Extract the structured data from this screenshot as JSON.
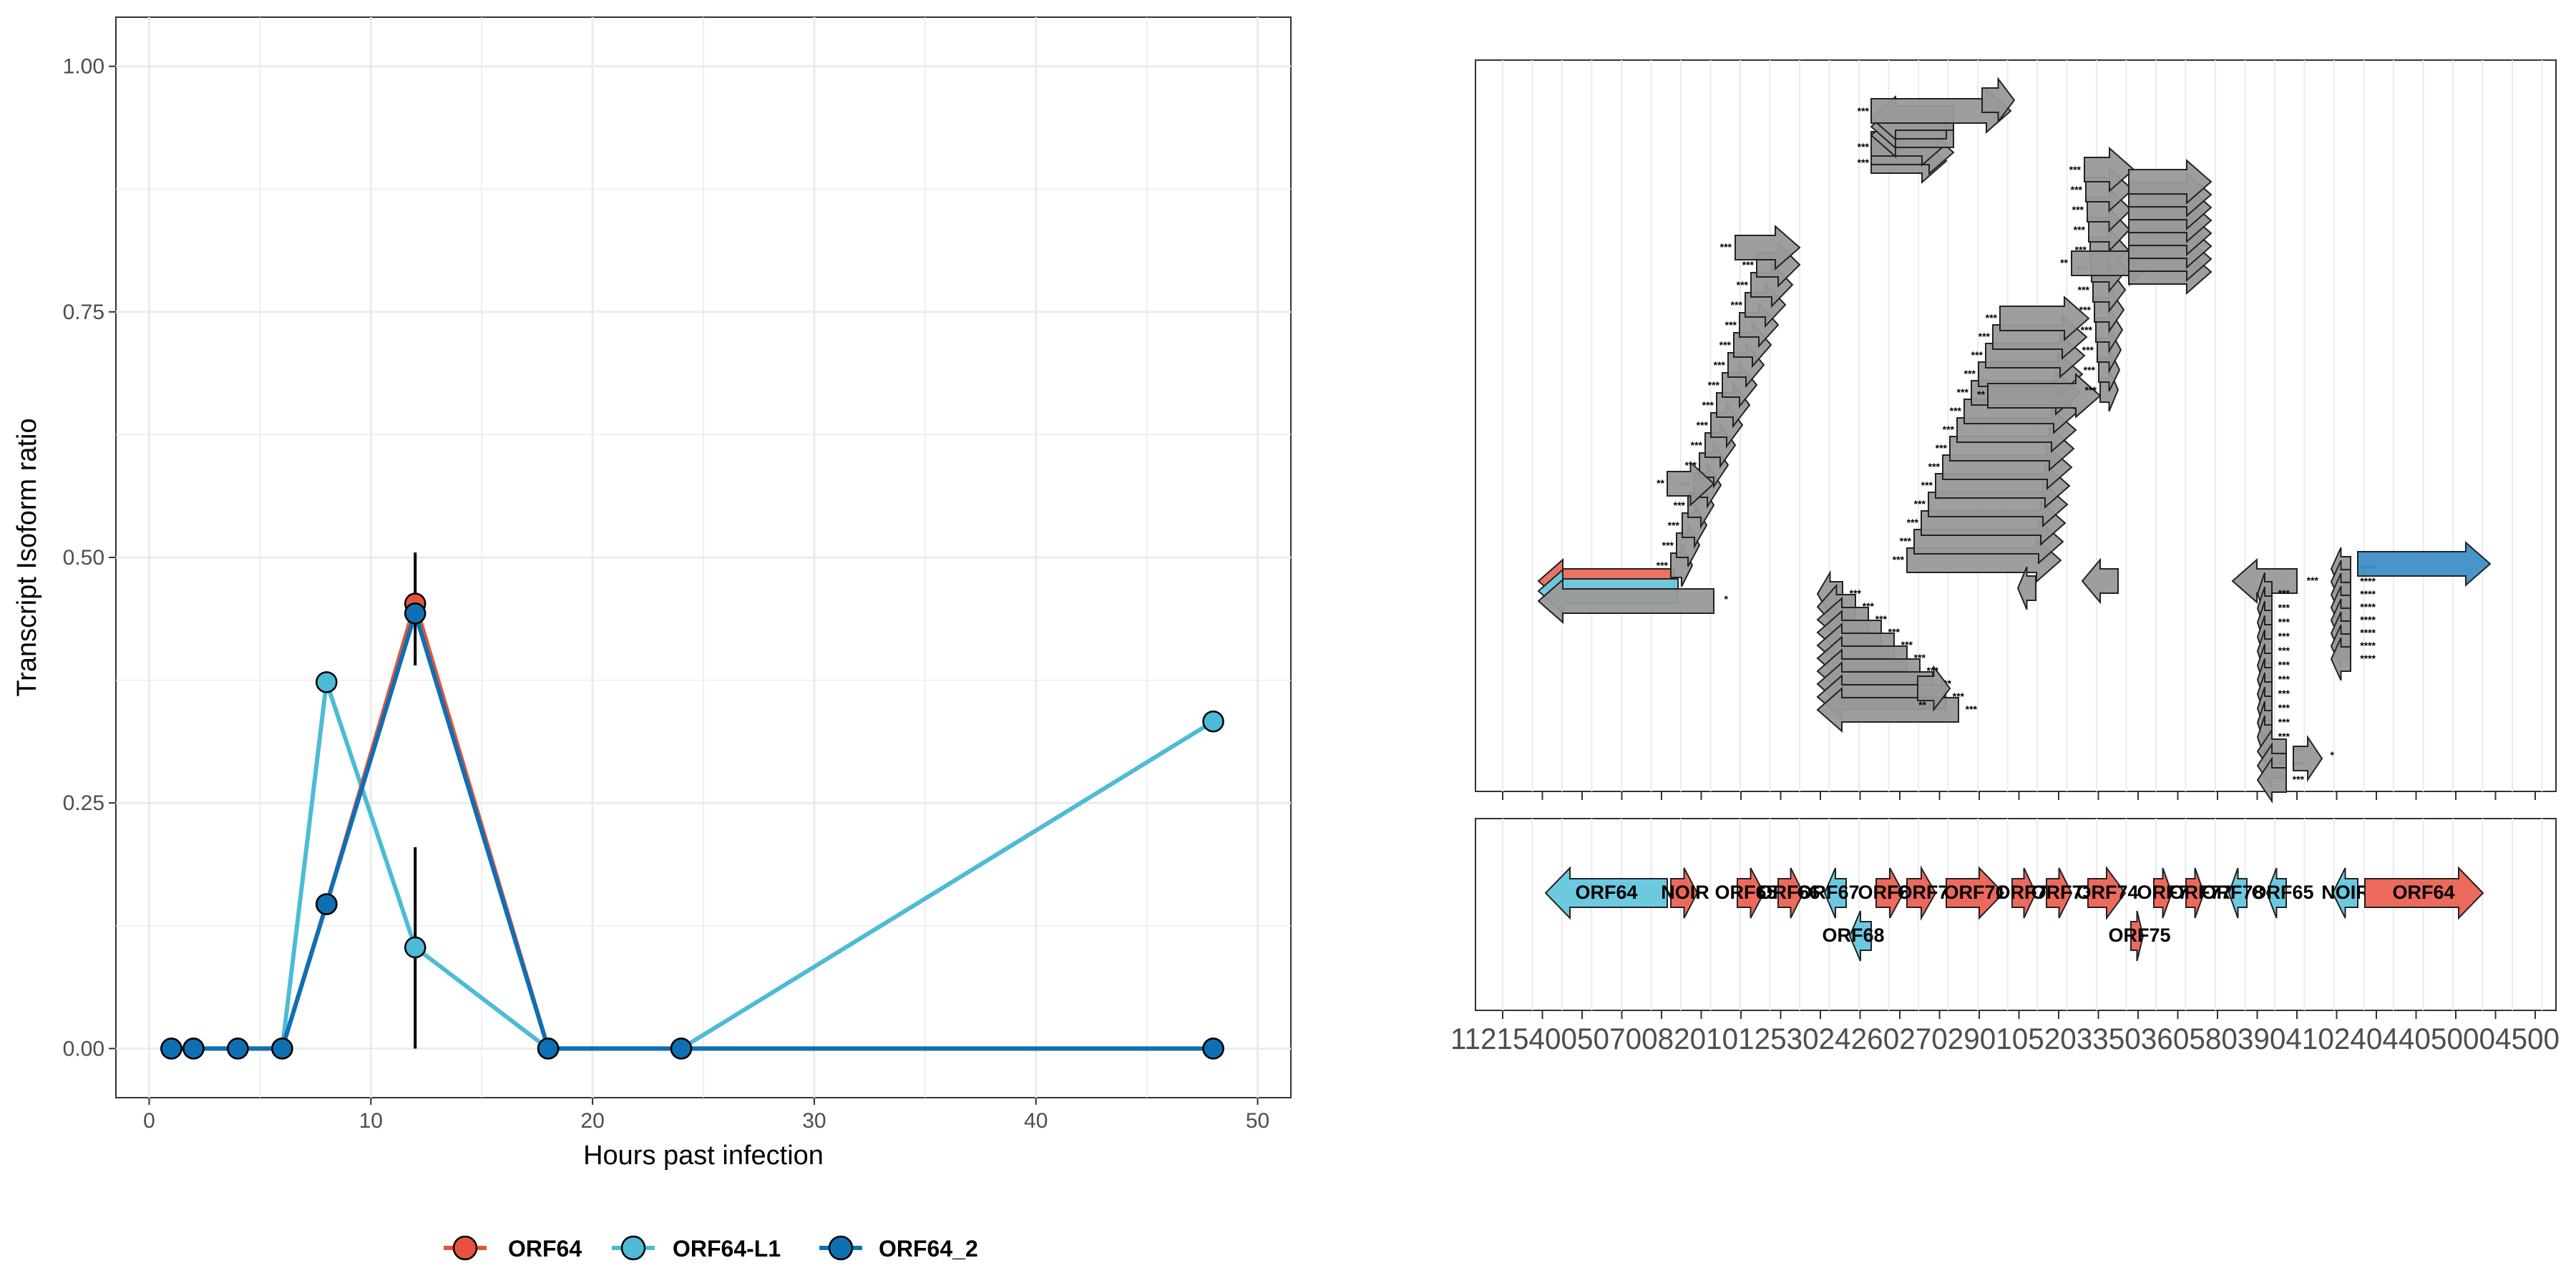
{
  "colors": {
    "orf64": "#E5533D",
    "orf64_l1": "#4DBBD5",
    "orf64_2": "#0F6FB3",
    "gene_red": "#EC6A5C",
    "gene_cyan": "#6CCAE0",
    "gene_blue": "#3D8FC6",
    "transcript_grey": "#999999",
    "grid": "#EBEBEB",
    "axis_text": "#4D4D4D"
  },
  "chart_data": [
    {
      "type": "line",
      "title": "",
      "xlabel": "Hours past infection",
      "ylabel": "Transcript Isoform ratio",
      "xlim": [
        -1.5,
        51.5
      ],
      "ylim": [
        -0.05,
        1.05
      ],
      "x_ticks": [
        0,
        10,
        20,
        30,
        40,
        50
      ],
      "x_tick_labels": [
        "0",
        "10",
        "20",
        "30",
        "40",
        "50"
      ],
      "y_ticks": [
        0,
        0.25,
        0.5,
        0.75,
        1.0
      ],
      "y_tick_labels": [
        "0.00",
        "0.25",
        "0.50",
        "0.75",
        "1.00"
      ],
      "grid": true,
      "legend_position": "bottom",
      "series": [
        {
          "name": "ORF64-L1",
          "color_key": "orf64_l1",
          "x": [
            1,
            2,
            4,
            6,
            8,
            12,
            18,
            24,
            48
          ],
          "y": [
            0,
            0,
            0,
            0,
            0.373,
            0.103,
            0,
            0,
            0.333
          ]
        },
        {
          "name": "ORF64",
          "color_key": "orf64",
          "x": [
            1,
            2,
            4,
            6,
            8,
            12,
            18,
            24,
            48
          ],
          "y": [
            0,
            0,
            0,
            0,
            0.147,
            0.453,
            0,
            0,
            0
          ]
        },
        {
          "name": "ORF64_2",
          "color_key": "orf64_2",
          "x": [
            1,
            2,
            4,
            6,
            8,
            12,
            18,
            24,
            48
          ],
          "y": [
            0,
            0,
            0,
            0,
            0.147,
            0.443,
            0,
            0,
            0
          ]
        }
      ],
      "error_bars": [
        {
          "x": 12,
          "low": 0.39,
          "high": 0.505
        },
        {
          "x": 12,
          "low": 0.0,
          "high": 0.205
        }
      ]
    },
    {
      "type": "gene_map",
      "xlabel": "",
      "ylabel": "",
      "tick_labels_overlapped": "112154005070082010125302426027029010520335036058039041024044050004500",
      "genes": [
        {
          "label": "ORF64",
          "strand": "-",
          "color_key": "gene_cyan"
        },
        {
          "label": "NOIR",
          "strand": "+",
          "color_key": "gene_red"
        },
        {
          "label": "ORF65",
          "strand": "+",
          "color_key": "gene_red"
        },
        {
          "label": "ORF66",
          "strand": "+",
          "color_key": "gene_red"
        },
        {
          "label": "ORF67",
          "strand": "-",
          "color_key": "gene_cyan"
        },
        {
          "label": "ORF68",
          "strand": "-",
          "color_key": "gene_cyan"
        },
        {
          "label": "ORF69",
          "strand": "+",
          "color_key": "gene_red"
        },
        {
          "label": "ORF70",
          "strand": "+",
          "color_key": "gene_red"
        },
        {
          "label": "ORF71",
          "strand": "+",
          "color_key": "gene_red"
        },
        {
          "label": "ORF72",
          "strand": "+",
          "color_key": "gene_red"
        },
        {
          "label": "ORF73",
          "strand": "+",
          "color_key": "gene_red"
        },
        {
          "label": "ORF74",
          "strand": "+",
          "color_key": "gene_red"
        },
        {
          "label": "ORF75",
          "strand": "+",
          "color_key": "gene_red"
        },
        {
          "label": "ORF76",
          "strand": "+",
          "color_key": "gene_red"
        },
        {
          "label": "ORF77",
          "strand": "+",
          "color_key": "gene_red"
        },
        {
          "label": "ORF78",
          "strand": "-",
          "color_key": "gene_cyan"
        },
        {
          "label": "ORF65",
          "strand": "-",
          "color_key": "gene_cyan"
        },
        {
          "label": "NOIR",
          "strand": "-",
          "color_key": "gene_cyan"
        },
        {
          "label": "ORF64",
          "strand": "+",
          "color_key": "gene_red"
        }
      ],
      "transcript_labels": [
        "*",
        "**",
        "***",
        "****"
      ]
    }
  ]
}
